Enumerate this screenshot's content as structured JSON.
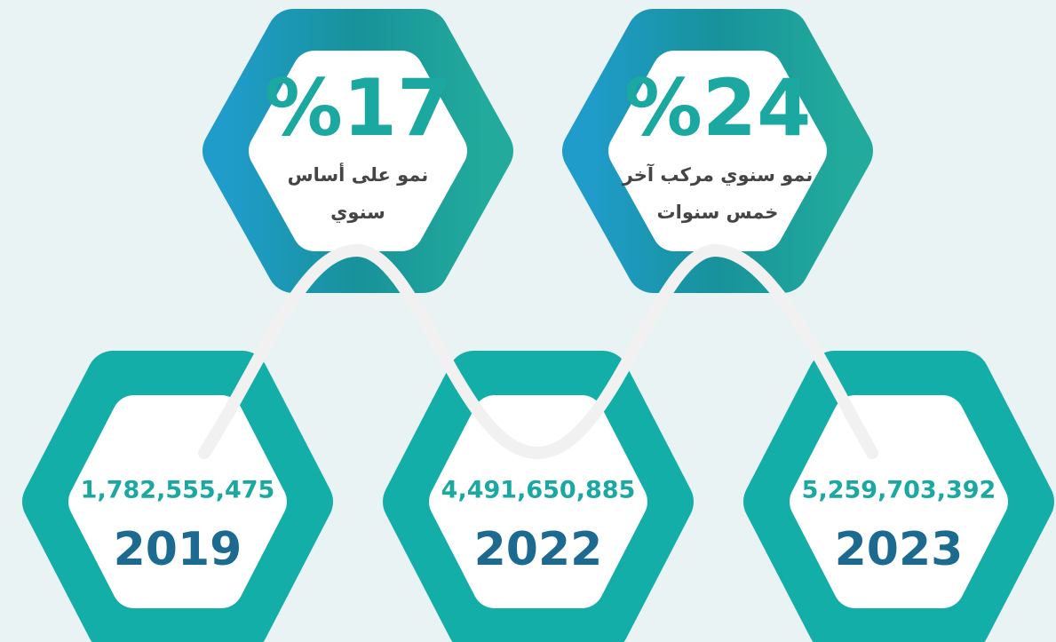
{
  "growth": [
    {
      "value": "%17",
      "label": [
        "نمو على أساس",
        "سنوي"
      ]
    },
    {
      "value": "%24",
      "label": [
        "نمو سنوي مركب آخر",
        "خمس سنوات"
      ]
    }
  ],
  "years": [
    {
      "amount": "1,782,555,475",
      "year": "2019"
    },
    {
      "amount": "4,491,650,885",
      "year": "2022"
    },
    {
      "amount": "5,259,703,392",
      "year": "2023"
    }
  ]
}
